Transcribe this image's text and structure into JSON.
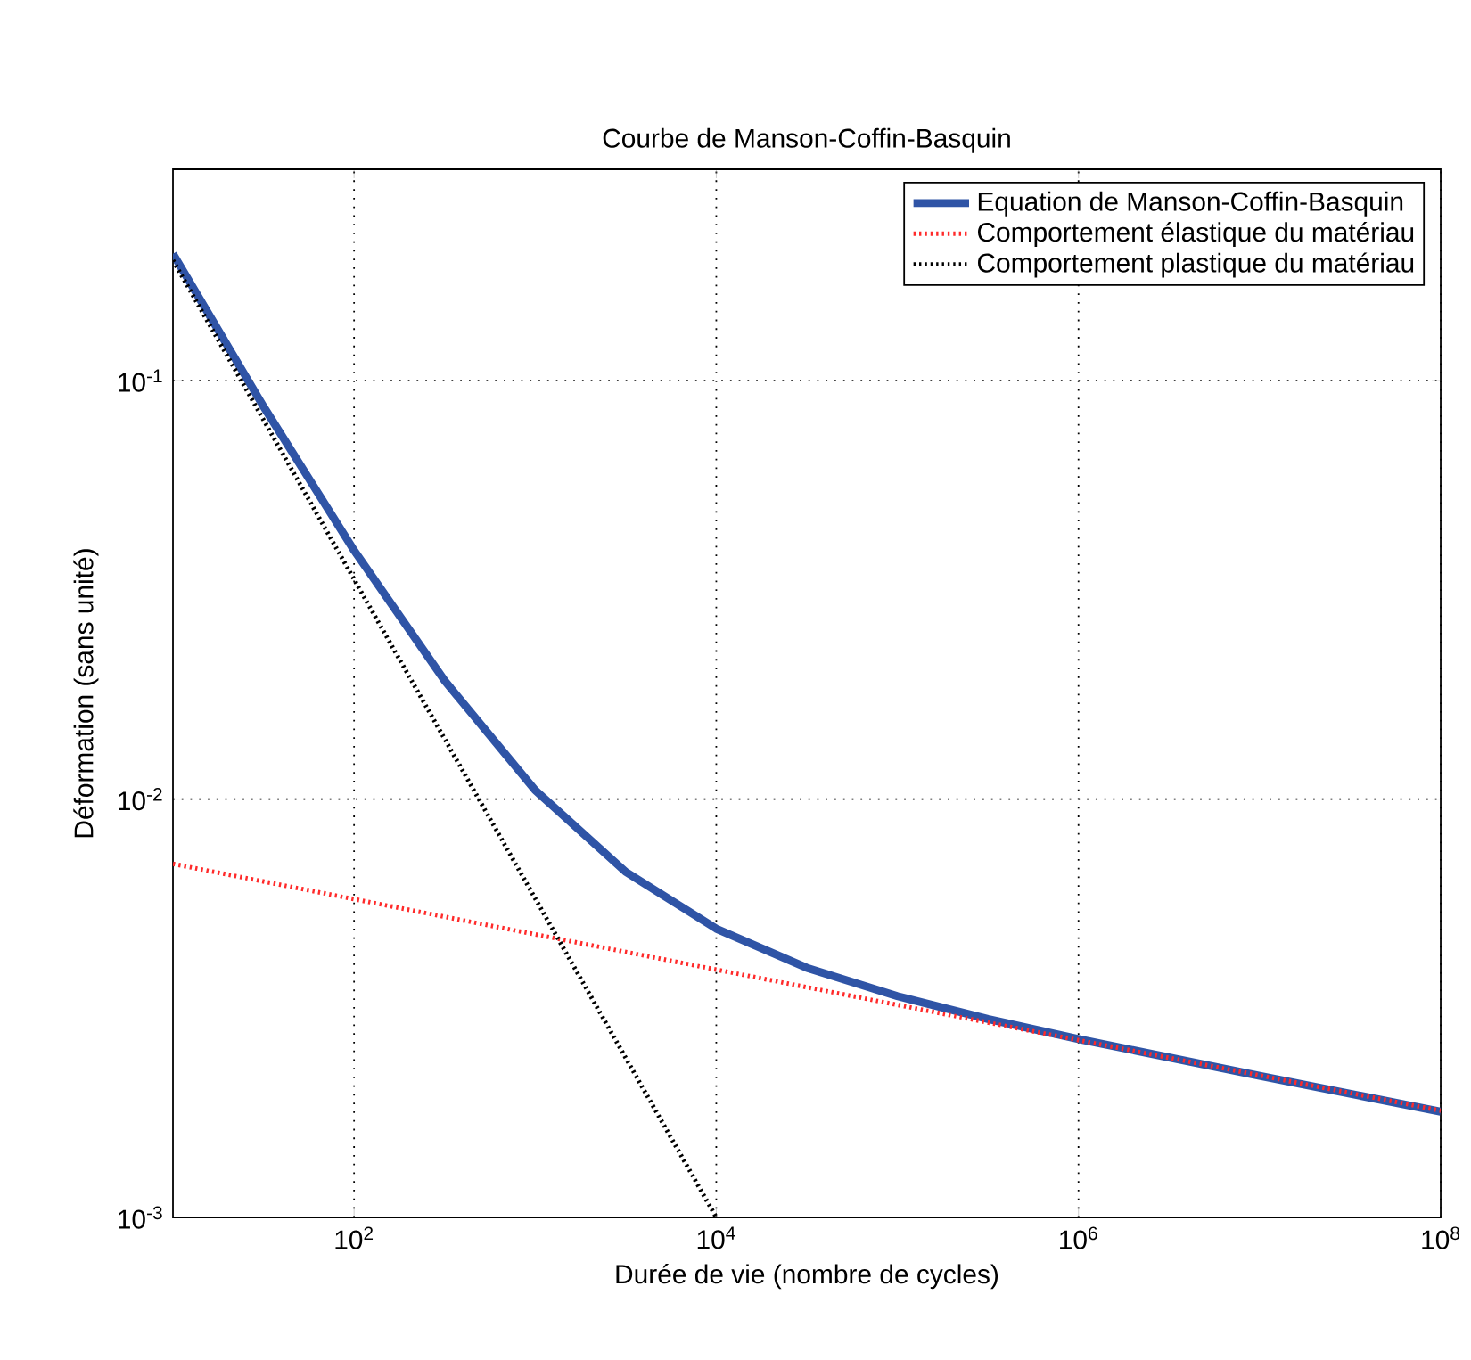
{
  "chart_data": {
    "type": "line",
    "title": "Courbe de Manson-Coffin-Basquin",
    "xlabel": "Durée de vie (nombre de cycles)",
    "ylabel": "Déformation (sans unité)",
    "log": "xy",
    "grid": true,
    "legend": "top right",
    "xlim": [
      10,
      100000000
    ],
    "ylim": [
      0.001,
      0.32
    ],
    "xticks": [
      {
        "value": 100,
        "label": "10$^{2}$"
      },
      {
        "value": 10000,
        "label": "10$^{4}$"
      },
      {
        "value": 1000000,
        "label": "10$^{6}$"
      },
      {
        "value": 100000000,
        "label": "10$^{8}$"
      }
    ],
    "yticks": [
      {
        "value": 0.001,
        "label": "10$^{-3}$"
      },
      {
        "value": 0.01,
        "label": "10$^{-2}$"
      },
      {
        "value": 0.1,
        "label": "10$^{-1}$"
      }
    ],
    "series": [
      {
        "name": "Equation de Manson-Coffin-Basquin",
        "color": "#2f54a6",
        "line_style": "solid",
        "x": [
          10,
          31.6,
          100,
          316,
          1000,
          3160,
          10000,
          31600,
          100000,
          316000,
          1000000,
          10000000,
          100000000
        ],
        "values": [
          0.201,
          0.0868,
          0.0393,
          0.0192,
          0.0105,
          0.0067,
          0.0049,
          0.00395,
          0.00338,
          0.00298,
          0.00267,
          0.00218,
          0.00179
        ]
      },
      {
        "name": "Comportement élastique du matériau",
        "color": "#ff2a2a",
        "line_style": "dotted",
        "x": [
          10,
          100000000
        ],
        "values": [
          0.007,
          0.0018
        ]
      },
      {
        "name": "Comportement plastique du matériau",
        "color": "#000000",
        "line_style": "dotted",
        "x": [
          10,
          10000
        ],
        "values": [
          0.194,
          0.001
        ]
      }
    ]
  }
}
